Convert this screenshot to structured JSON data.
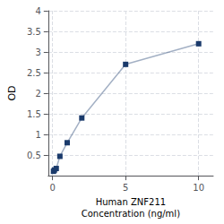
{
  "chart_data": {
    "type": "line",
    "x": [
      0.0625,
      0.125,
      0.25,
      0.5,
      1,
      2,
      5,
      10
    ],
    "values": [
      0.107,
      0.138,
      0.175,
      0.47,
      0.8,
      1.4,
      2.7,
      3.2
    ],
    "color": "#1a3a6b",
    "marker": "square",
    "xlabel": "Human ZNF211\nConcentration (ng/ml)",
    "ylabel": "OD",
    "xlim": [
      -0.3,
      11
    ],
    "ylim": [
      0,
      4
    ],
    "xticks": [
      0,
      5,
      10
    ],
    "yticks": [
      0.5,
      1,
      1.5,
      2,
      2.5,
      3,
      3.5,
      4
    ],
    "grid": true
  }
}
